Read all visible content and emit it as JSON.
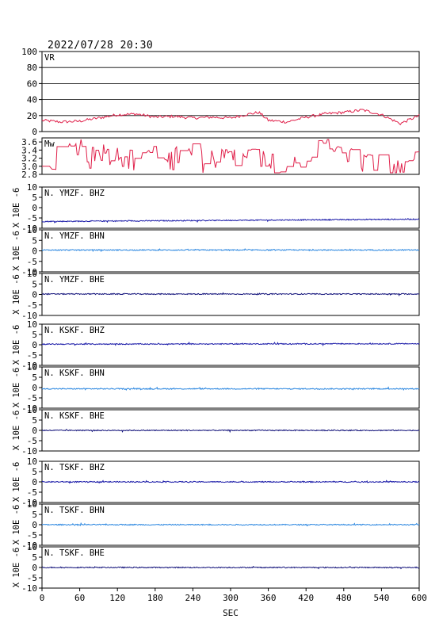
{
  "title": "2022/07/28 20:30",
  "chart_data": {
    "type": "line",
    "x_range": [
      0,
      600
    ],
    "x_ticks": [
      0,
      60,
      120,
      180,
      240,
      300,
      360,
      420,
      480,
      540,
      600
    ],
    "xlabel": "SEC",
    "panels": [
      {
        "label": "VR",
        "ylim": [
          0,
          100
        ],
        "yticks": [
          0,
          20,
          40,
          60,
          80,
          100
        ],
        "grid": true,
        "color": "#e0204a",
        "kind": "vr",
        "x": [
          0,
          30,
          60,
          90,
          120,
          150,
          180,
          210,
          240,
          270,
          300,
          330,
          345,
          360,
          390,
          420,
          450,
          480,
          510,
          540,
          570,
          600
        ],
        "y": [
          14,
          12,
          13,
          17,
          21,
          22,
          18,
          19,
          17,
          18,
          17,
          22,
          24,
          14,
          12,
          18,
          22,
          24,
          27,
          21,
          10,
          20
        ]
      },
      {
        "label": "Mw",
        "ylim": [
          2.8,
          3.7
        ],
        "yticks": [
          2.8,
          3.0,
          3.2,
          3.4,
          3.6
        ],
        "grid": false,
        "color": "#e0204a",
        "kind": "mw",
        "x": [
          0,
          15,
          30,
          45,
          60,
          75,
          90,
          105,
          120,
          135,
          150,
          165,
          180,
          195,
          210,
          225,
          240,
          255,
          270,
          285,
          300,
          315,
          330,
          345,
          360,
          375,
          390,
          405,
          420,
          435,
          450,
          465,
          480,
          495,
          510,
          525,
          540,
          555,
          570,
          585,
          600
        ],
        "y": [
          3.0,
          3.1,
          3.3,
          3.4,
          3.5,
          3.2,
          3.4,
          3.3,
          3.3,
          3.2,
          3.1,
          3.4,
          3.3,
          3.1,
          3.2,
          3.3,
          3.3,
          3.1,
          3.2,
          3.2,
          3.3,
          3.1,
          3.2,
          3.2,
          3.1,
          3.0,
          2.9,
          3.0,
          3.2,
          3.3,
          3.5,
          3.6,
          3.2,
          3.2,
          3.1,
          3.2,
          3.0,
          3.1,
          2.9,
          3.3,
          3.3
        ]
      },
      {
        "label": "N. YMZF. BHZ",
        "ylim": [
          -10,
          10
        ],
        "yticks": [
          -10,
          -5,
          0,
          5,
          10
        ],
        "baseline": [
          -6.7,
          -5.6
        ],
        "color": "#1a1aa8",
        "kind": "wave"
      },
      {
        "label": "N. YMZF. BHN",
        "ylim": [
          -10,
          10
        ],
        "yticks": [
          -10,
          -5,
          0,
          5,
          10
        ],
        "baseline": [
          0.4,
          0.4
        ],
        "color": "#2a86e0",
        "kind": "wave"
      },
      {
        "label": "N. YMZF. BHE",
        "ylim": [
          -10,
          10
        ],
        "yticks": [
          -10,
          -5,
          0,
          5,
          10
        ],
        "baseline": [
          0.2,
          0.2
        ],
        "color": "#12127a",
        "kind": "wave"
      },
      {
        "label": "N. KSKF. BHZ",
        "ylim": [
          -10,
          10
        ],
        "yticks": [
          -10,
          -5,
          0,
          5,
          10
        ],
        "baseline": [
          0.3,
          0.5
        ],
        "color": "#1a1aa8",
        "kind": "wave"
      },
      {
        "label": "N. KSKF. BHN",
        "ylim": [
          -10,
          10
        ],
        "yticks": [
          -10,
          -5,
          0,
          5,
          10
        ],
        "baseline": [
          -0.6,
          -0.6
        ],
        "color": "#2a86e0",
        "kind": "wave"
      },
      {
        "label": "N. KSKF. BHE",
        "ylim": [
          -10,
          10
        ],
        "yticks": [
          -10,
          -5,
          0,
          5,
          10
        ],
        "baseline": [
          0.0,
          0.0
        ],
        "color": "#12127a",
        "kind": "wave"
      },
      {
        "label": "N. TSKF. BHZ",
        "ylim": [
          -10,
          10
        ],
        "yticks": [
          -10,
          -5,
          0,
          5,
          10
        ],
        "baseline": [
          0.0,
          0.0
        ],
        "color": "#1a1aa8",
        "kind": "wave"
      },
      {
        "label": "N. TSKF. BHN",
        "ylim": [
          -10,
          10
        ],
        "yticks": [
          -10,
          -5,
          0,
          5,
          10
        ],
        "baseline": [
          0.0,
          0.0
        ],
        "color": "#2a86e0",
        "kind": "wave"
      },
      {
        "label": "N. TSKF. BHE",
        "ylim": [
          -10,
          10
        ],
        "yticks": [
          -10,
          -5,
          0,
          5,
          10
        ],
        "baseline": [
          0.0,
          0.0
        ],
        "color": "#12127a",
        "kind": "wave"
      }
    ],
    "unit_label": "X 10E -6"
  }
}
